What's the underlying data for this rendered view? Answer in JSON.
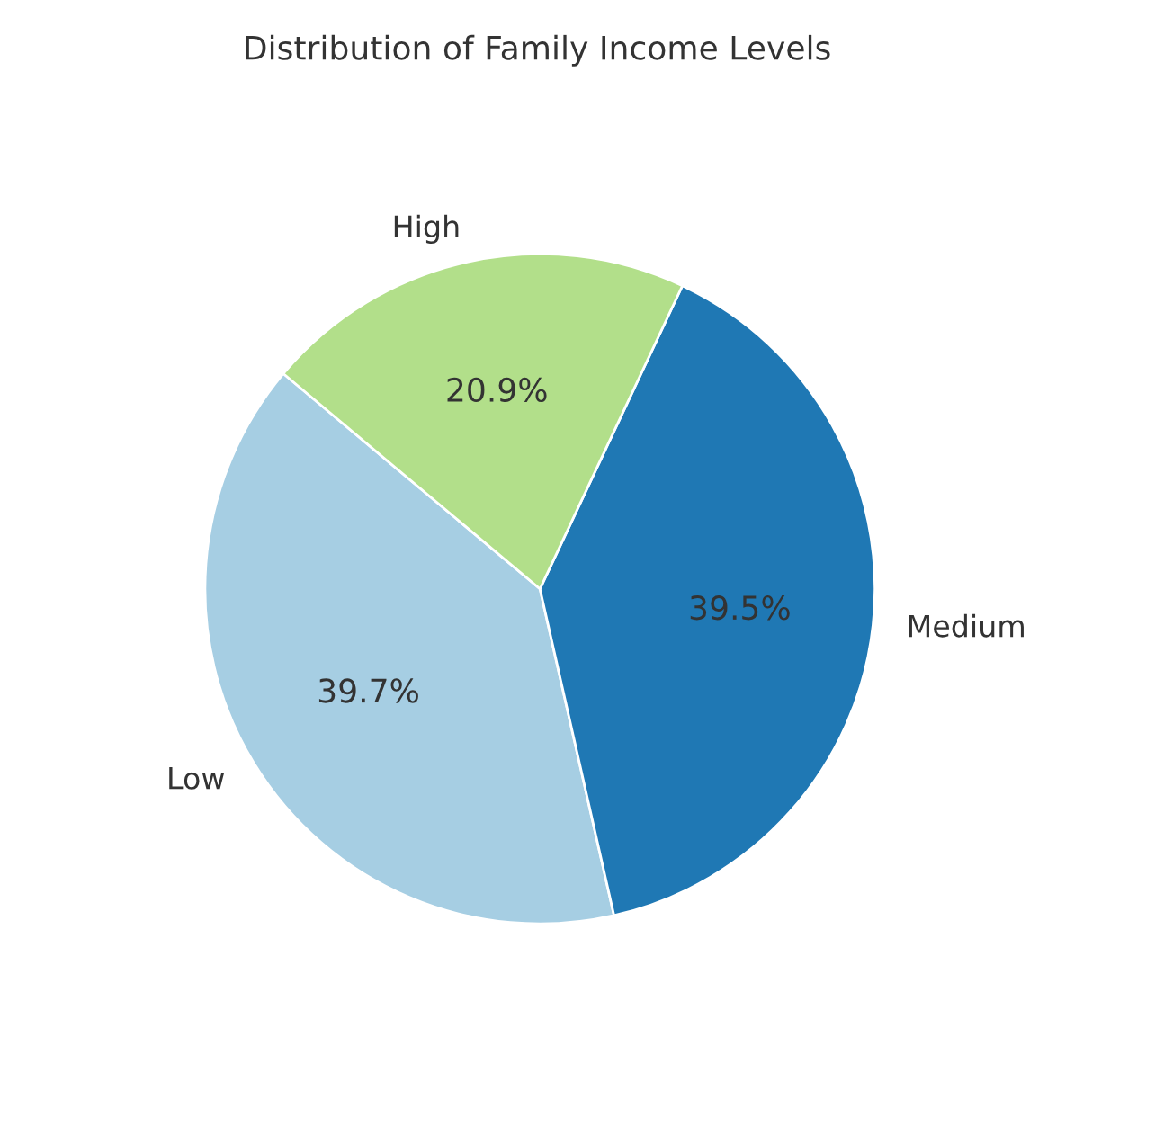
{
  "chart_data": {
    "type": "pie",
    "title": "Distribution of Family Income Levels",
    "categories": [
      "Low",
      "Medium",
      "High"
    ],
    "values": [
      39.7,
      39.5,
      20.9
    ],
    "value_labels": [
      "39.7%",
      "39.5%",
      "20.9%"
    ],
    "colors": [
      "#a6cee3",
      "#1f78b4",
      "#b2df8a"
    ]
  }
}
